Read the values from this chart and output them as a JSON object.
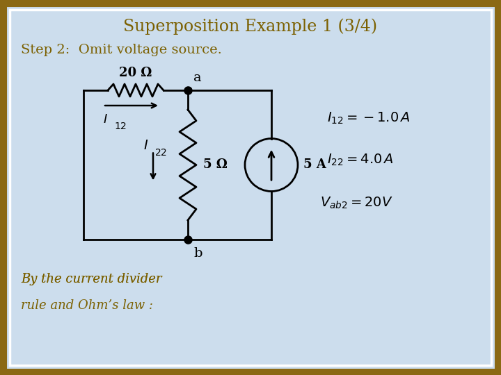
{
  "title": "Superposition Example 1 (3/4)",
  "title_color": "#7B6000",
  "step_text": "Step 2:  Omit voltage source.",
  "step_color": "#7B6000",
  "bg_outer": "#B8C8D8",
  "bg_inner": "#CCDDED",
  "border_color": "#8B6914",
  "border_lw": 8,
  "white_border_lw": 2.5,
  "formula_color": "#000000",
  "bottom_text_color": "#7B6000",
  "circuit_color": "#000000",
  "label_20ohm": "20 Ω",
  "label_5ohm": "5 Ω",
  "label_5A": "5 A"
}
